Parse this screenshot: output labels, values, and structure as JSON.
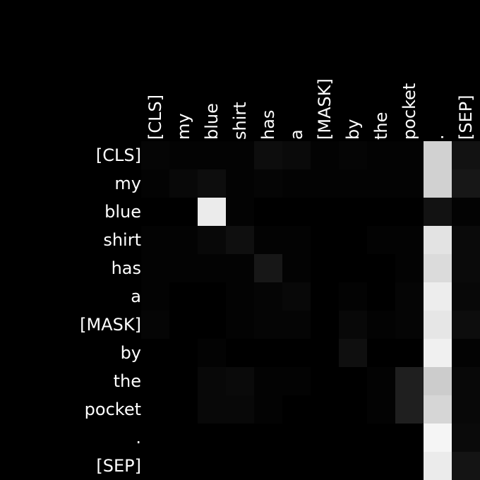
{
  "chart_data": {
    "type": "heatmap",
    "title": "",
    "xlabel": "",
    "ylabel": "",
    "x_labels": [
      "[CLS]",
      "my",
      "blue",
      "shirt",
      "has",
      "a",
      "[MASK]",
      "by",
      "the",
      "pocket",
      ".",
      "[SEP]"
    ],
    "y_labels": [
      "[CLS]",
      "my",
      "blue",
      "shirt",
      "has",
      "a",
      "[MASK]",
      "by",
      "the",
      "pocket",
      ".",
      "[SEP]"
    ],
    "x_axis_position": "top",
    "colormap": "grayscale",
    "color_range": [
      0,
      1
    ],
    "grid": false,
    "legend": "none",
    "values": [
      [
        0.02,
        0.01,
        0.01,
        0.01,
        0.05,
        0.04,
        0.01,
        0.02,
        0.01,
        0.01,
        0.82,
        0.07
      ],
      [
        0.01,
        0.03,
        0.05,
        0.01,
        0.02,
        0.01,
        0.01,
        0.01,
        0.01,
        0.01,
        0.82,
        0.09
      ],
      [
        0.0,
        0.0,
        0.92,
        0.01,
        0.0,
        0.0,
        0.0,
        0.0,
        0.0,
        0.0,
        0.07,
        0.01
      ],
      [
        0.01,
        0.01,
        0.03,
        0.06,
        0.01,
        0.01,
        0.0,
        0.0,
        0.01,
        0.01,
        0.89,
        0.04
      ],
      [
        0.01,
        0.01,
        0.01,
        0.01,
        0.09,
        0.01,
        0.0,
        0.0,
        0.0,
        0.01,
        0.86,
        0.04
      ],
      [
        0.01,
        0.0,
        0.0,
        0.01,
        0.02,
        0.03,
        0.0,
        0.01,
        0.0,
        0.02,
        0.93,
        0.03
      ],
      [
        0.02,
        0.0,
        0.0,
        0.01,
        0.02,
        0.02,
        0.0,
        0.03,
        0.01,
        0.02,
        0.9,
        0.05
      ],
      [
        0.0,
        0.0,
        0.01,
        0.0,
        0.0,
        0.0,
        0.0,
        0.06,
        0.0,
        0.0,
        0.94,
        0.01
      ],
      [
        0.0,
        0.0,
        0.03,
        0.04,
        0.01,
        0.01,
        0.0,
        0.0,
        0.01,
        0.12,
        0.8,
        0.03
      ],
      [
        0.0,
        0.0,
        0.03,
        0.03,
        0.01,
        0.0,
        0.0,
        0.0,
        0.01,
        0.12,
        0.84,
        0.03
      ],
      [
        0.0,
        0.0,
        0.0,
        0.0,
        0.0,
        0.0,
        0.0,
        0.0,
        0.0,
        0.0,
        0.96,
        0.04
      ],
      [
        0.0,
        0.0,
        0.0,
        0.0,
        0.0,
        0.0,
        0.0,
        0.0,
        0.0,
        0.0,
        0.92,
        0.08
      ]
    ]
  }
}
